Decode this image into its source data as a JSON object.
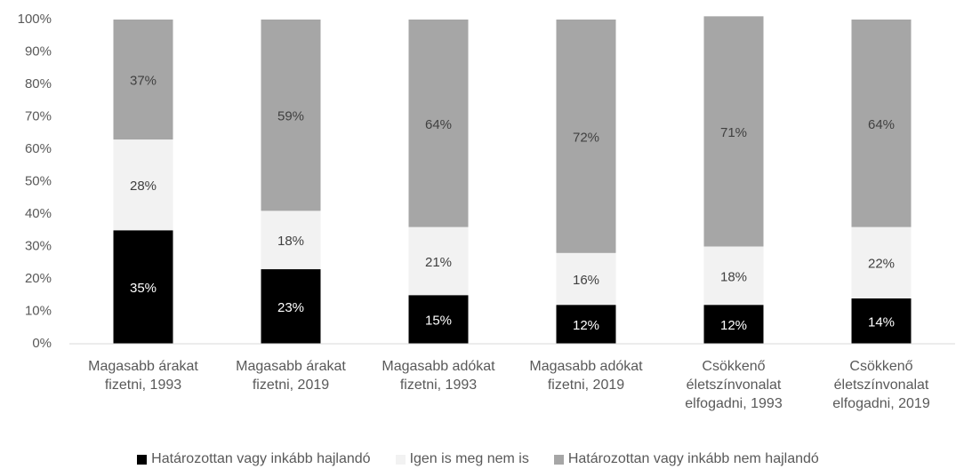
{
  "chart_data": {
    "type": "stacked_bar",
    "categories": [
      "Magasabb árakat fizetni, 1993",
      "Magasabb árakat fizetni, 2019",
      "Magasabb adókat fizetni, 1993",
      "Magasabb adókat fizetni, 2019",
      "Csökkenő életszínvonalat elfogadni, 1993",
      "Csökkenő életszínvonalat elfogadni, 2019"
    ],
    "series": [
      {
        "name": "Határozottan vagy inkább hajlandó",
        "color": "#000000",
        "values": [
          35,
          23,
          15,
          12,
          12,
          14
        ],
        "value_labels": [
          "35%",
          "23%",
          "15%",
          "12%",
          "12%",
          "14%"
        ]
      },
      {
        "name": "Igen is meg nem is",
        "color": "#f2f2f2",
        "values": [
          28,
          18,
          21,
          16,
          18,
          22
        ],
        "value_labels": [
          "28%",
          "18%",
          "21%",
          "16%",
          "18%",
          "22%"
        ]
      },
      {
        "name": "Határozottan vagy inkább nem hajlandó",
        "color": "#a6a6a6",
        "values": [
          37,
          59,
          64,
          72,
          71,
          64
        ],
        "value_labels": [
          "37%",
          "59%",
          "64%",
          "72%",
          "71%",
          "64%"
        ]
      }
    ],
    "ylim": [
      0,
      100
    ],
    "yticks": [
      {
        "value": 0,
        "label": "0%"
      },
      {
        "value": 10,
        "label": "10%"
      },
      {
        "value": 20,
        "label": "20%"
      },
      {
        "value": 30,
        "label": "30%"
      },
      {
        "value": 40,
        "label": "40%"
      },
      {
        "value": 50,
        "label": "50%"
      },
      {
        "value": 60,
        "label": "60%"
      },
      {
        "value": 70,
        "label": "70%"
      },
      {
        "value": 80,
        "label": "80%"
      },
      {
        "value": 90,
        "label": "90%"
      },
      {
        "value": 100,
        "label": "100%"
      }
    ],
    "grid": false,
    "legend": "bottom"
  }
}
